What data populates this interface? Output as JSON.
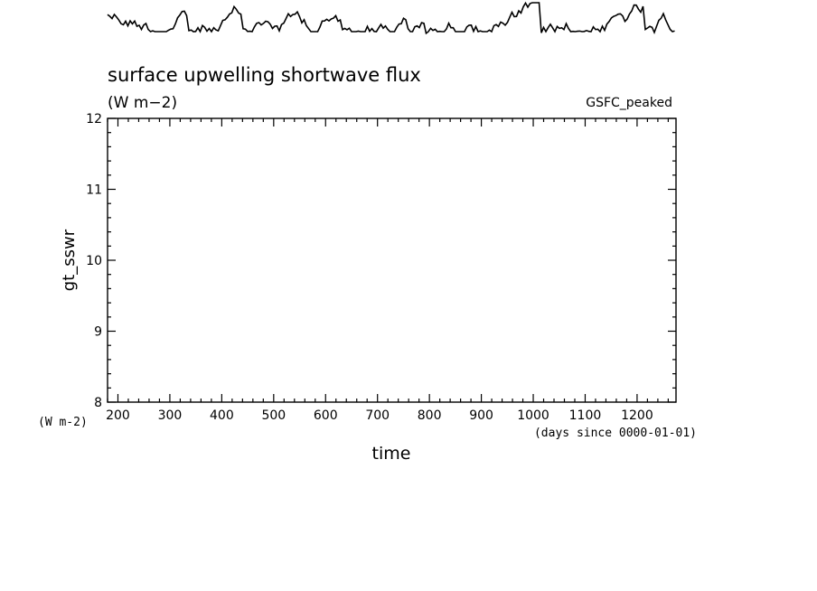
{
  "chart_data": {
    "type": "line",
    "title": "surface upwelling shortwave flux",
    "units": "(W m−2)",
    "dataset_label": "GSFC_peaked",
    "ylabel": "gt_sswr",
    "ylabel_units": "(W m-2)",
    "xlabel": "time",
    "xlabel_units": "(days since 0000-01-01)",
    "xlim": [
      180,
      1275
    ],
    "ylim": [
      8,
      12
    ],
    "x_ticks": [
      200,
      300,
      400,
      500,
      600,
      700,
      800,
      900,
      1000,
      1100,
      1200
    ],
    "y_ticks": [
      8,
      9,
      10,
      11,
      12
    ],
    "grid": false,
    "series": [
      {
        "values": []
      }
    ],
    "note_line_above_plot": "noisy trace drawn above the plot frame, values outside the y range"
  }
}
